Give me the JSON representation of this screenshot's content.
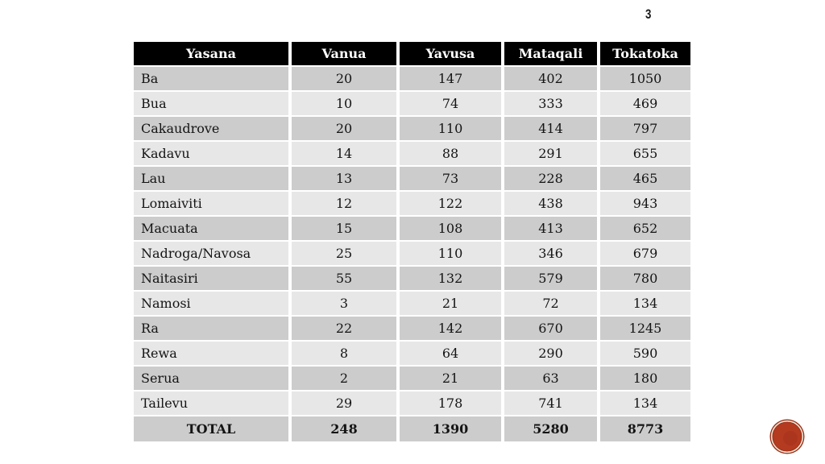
{
  "slide": {
    "page_number": "3"
  },
  "table": {
    "headers": [
      "Yasana",
      "Vanua",
      "Yavusa",
      "Mataqali",
      "Tokatoka"
    ],
    "rows": [
      [
        "Ba",
        "20",
        "147",
        "402",
        "1050"
      ],
      [
        "Bua",
        "10",
        "74",
        "333",
        "469"
      ],
      [
        "Cakaudrove",
        "20",
        "110",
        "414",
        "797"
      ],
      [
        "Kadavu",
        "14",
        "88",
        "291",
        "655"
      ],
      [
        "Lau",
        "13",
        "73",
        "228",
        "465"
      ],
      [
        "Lomaiviti",
        "12",
        "122",
        "438",
        "943"
      ],
      [
        "Macuata",
        "15",
        "108",
        "413",
        "652"
      ],
      [
        "Nadroga/Navosa",
        "25",
        "110",
        "346",
        "679"
      ],
      [
        "Naitasiri",
        "55",
        "132",
        "579",
        "780"
      ],
      [
        "Namosi",
        "3",
        "21",
        "72",
        "134"
      ],
      [
        "Ra",
        "22",
        "142",
        "670",
        "1245"
      ],
      [
        "Rewa",
        "8",
        "64",
        "290",
        "590"
      ],
      [
        "Serua",
        "2",
        "21",
        "63",
        "180"
      ],
      [
        "Tailevu",
        "29",
        "178",
        "741",
        "134"
      ]
    ],
    "total_row": [
      "TOTAL",
      "248",
      "1390",
      "5280",
      "8773"
    ]
  },
  "icons": {
    "badge": "red-seal-icon"
  },
  "colors": {
    "header_bg": "#000000",
    "header_text": "#ffffff",
    "row_dark": "#cdcccc",
    "row_light": "#e8e7e7",
    "badge_edge": "#9a3019",
    "badge_fill": "#b43a20",
    "badge_ring": "#efe7d8"
  }
}
